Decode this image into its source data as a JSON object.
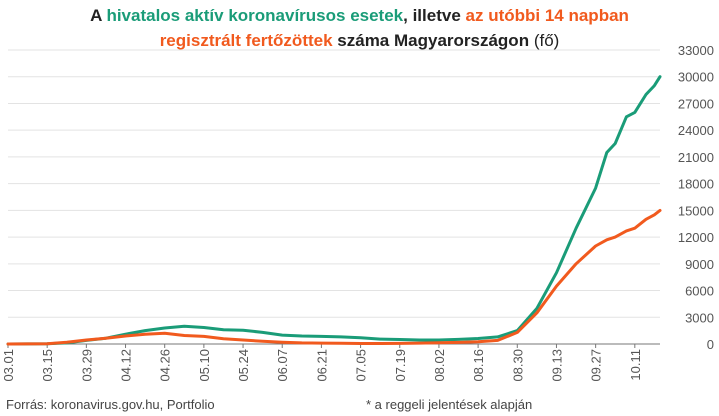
{
  "title": {
    "p1": "A ",
    "p2": "hivatalos aktív koronavírusos esetek",
    "p3": ", illetve ",
    "p4": "az utóbbi 14 napban",
    "p5": "regisztrált fertőzöttek",
    "p6": " száma Magyarországon ",
    "p7": "(fő)"
  },
  "footer": {
    "source": "Forrás: koronavirus.gov.hu, Portfolio",
    "note": "* a reggeli jelentések alapján"
  },
  "colors": {
    "active": "#1a9c78",
    "last14": "#f15a1e",
    "grid": "#e3e3e3",
    "axis": "#777777"
  },
  "chart_data": {
    "type": "line",
    "title": "A hivatalos aktív koronavírusos esetek, illetve az utóbbi 14 napban regisztrált fertőzöttek száma Magyarországon (fő)",
    "x_ticks": [
      "03.01",
      "03.15",
      "03.29",
      "04.12",
      "04.26",
      "05.10",
      "05.24",
      "06.07",
      "06.21",
      "07.05",
      "07.19",
      "08.02",
      "08.16",
      "08.30",
      "09.13",
      "09.27",
      "10.11"
    ],
    "y_ticks": [
      0,
      3000,
      6000,
      9000,
      12000,
      15000,
      18000,
      21000,
      24000,
      27000,
      30000,
      33000
    ],
    "ylim": [
      0,
      33000
    ],
    "x_range": [
      "03.01",
      "10.20"
    ],
    "grid": true,
    "y_axis_side": "right",
    "series": [
      {
        "name": "hivatalos aktív koronavírusos esetek",
        "color": "#1a9c78",
        "points": [
          [
            "03.01",
            0
          ],
          [
            "03.15",
            30
          ],
          [
            "03.22",
            120
          ],
          [
            "03.29",
            400
          ],
          [
            "04.05",
            650
          ],
          [
            "04.12",
            1100
          ],
          [
            "04.19",
            1500
          ],
          [
            "04.26",
            1800
          ],
          [
            "05.03",
            2000
          ],
          [
            "05.10",
            1850
          ],
          [
            "05.17",
            1600
          ],
          [
            "05.24",
            1550
          ],
          [
            "05.31",
            1300
          ],
          [
            "06.07",
            1000
          ],
          [
            "06.14",
            900
          ],
          [
            "06.21",
            850
          ],
          [
            "06.28",
            800
          ],
          [
            "07.05",
            700
          ],
          [
            "07.12",
            550
          ],
          [
            "07.19",
            500
          ],
          [
            "07.26",
            450
          ],
          [
            "08.02",
            450
          ],
          [
            "08.09",
            520
          ],
          [
            "08.16",
            620
          ],
          [
            "08.23",
            800
          ],
          [
            "08.30",
            1500
          ],
          [
            "09.06",
            4000
          ],
          [
            "09.13",
            8000
          ],
          [
            "09.20",
            13000
          ],
          [
            "09.27",
            17500
          ],
          [
            "10.01",
            21500
          ],
          [
            "10.04",
            22500
          ],
          [
            "10.08",
            25500
          ],
          [
            "10.11",
            26000
          ],
          [
            "10.15",
            28000
          ],
          [
            "10.18",
            29000
          ],
          [
            "10.20",
            30000
          ]
        ]
      },
      {
        "name": "az utóbbi 14 napban regisztrált fertőzöttek",
        "color": "#f15a1e",
        "points": [
          [
            "03.01",
            0
          ],
          [
            "03.15",
            30
          ],
          [
            "03.22",
            200
          ],
          [
            "03.29",
            450
          ],
          [
            "04.05",
            650
          ],
          [
            "04.12",
            900
          ],
          [
            "04.19",
            1100
          ],
          [
            "04.26",
            1200
          ],
          [
            "05.03",
            950
          ],
          [
            "05.10",
            850
          ],
          [
            "05.17",
            600
          ],
          [
            "05.24",
            450
          ],
          [
            "05.31",
            300
          ],
          [
            "06.07",
            200
          ],
          [
            "06.14",
            120
          ],
          [
            "06.21",
            100
          ],
          [
            "06.28",
            80
          ],
          [
            "07.05",
            60
          ],
          [
            "07.12",
            60
          ],
          [
            "07.19",
            70
          ],
          [
            "07.26",
            100
          ],
          [
            "08.02",
            130
          ],
          [
            "08.09",
            180
          ],
          [
            "08.16",
            260
          ],
          [
            "08.23",
            400
          ],
          [
            "08.30",
            1300
          ],
          [
            "09.06",
            3500
          ],
          [
            "09.13",
            6500
          ],
          [
            "09.20",
            9000
          ],
          [
            "09.27",
            11000
          ],
          [
            "10.01",
            11700
          ],
          [
            "10.04",
            12000
          ],
          [
            "10.08",
            12700
          ],
          [
            "10.11",
            13000
          ],
          [
            "10.15",
            14000
          ],
          [
            "10.18",
            14500
          ],
          [
            "10.20",
            15000
          ]
        ]
      }
    ]
  }
}
